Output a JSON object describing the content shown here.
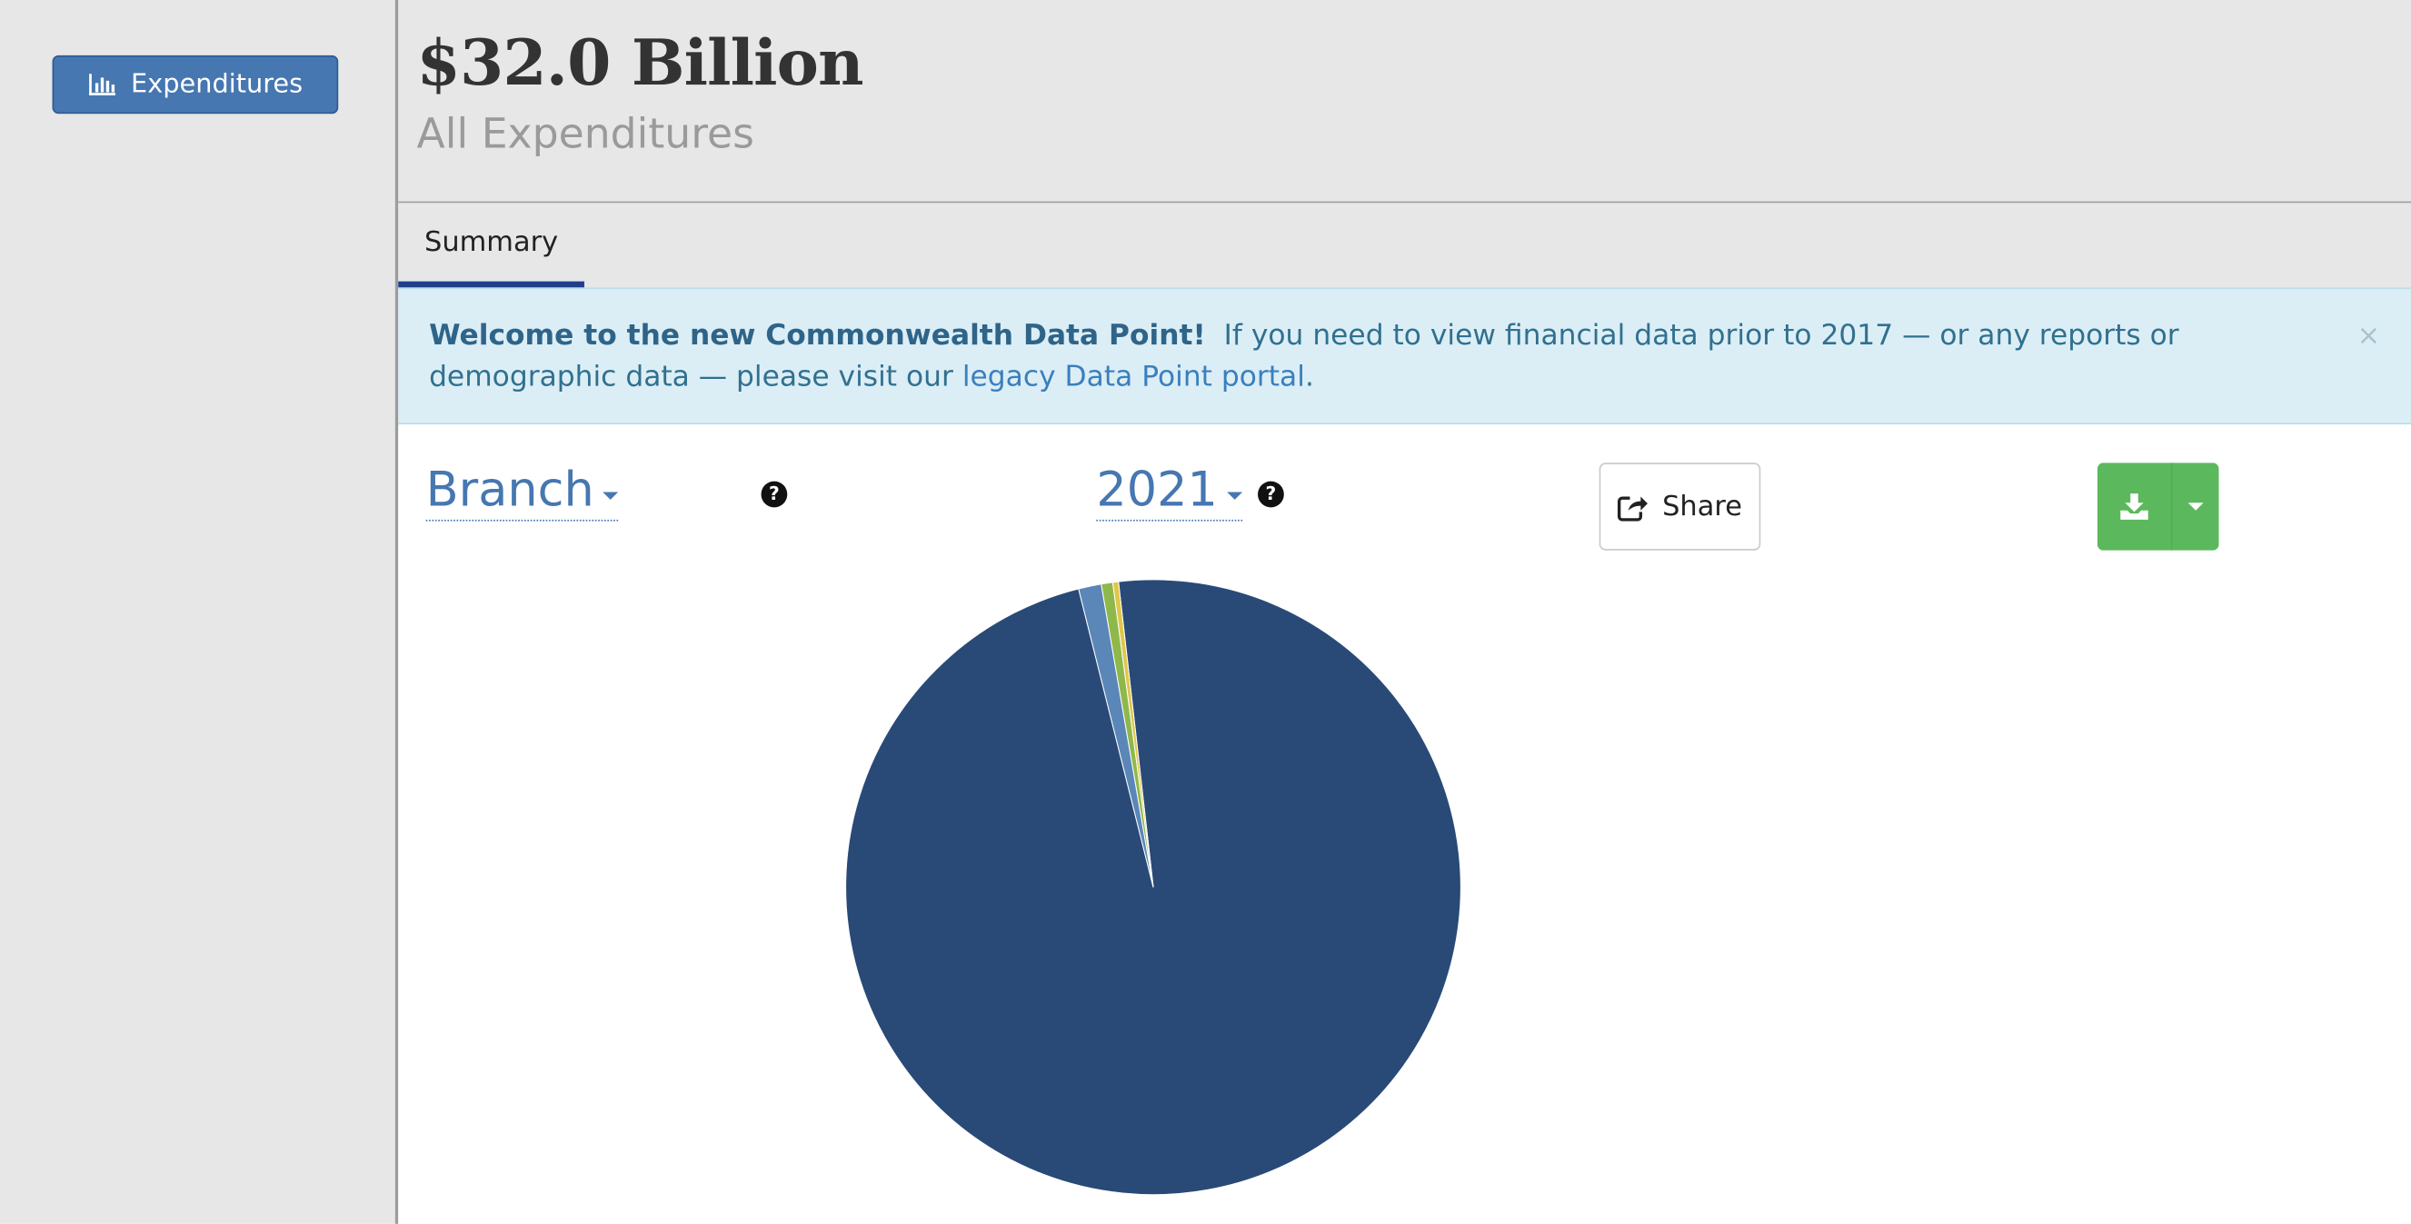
{
  "sidebar": {
    "button_label": "Expenditures",
    "button_icon": "bar-chart-icon"
  },
  "header": {
    "total": "$32.0 Billion",
    "subtitle": "All Expenditures"
  },
  "tabs": [
    {
      "label": "Summary",
      "active": true
    }
  ],
  "alert": {
    "bold": "Welcome to the new Commonwealth Data Point!",
    "text": "If you need to view financial data prior to 2017 — or any reports or demographic data — please visit our",
    "link": "legacy Data Point portal",
    "end": ".",
    "close": "×"
  },
  "controls": {
    "group_by": "Branch",
    "year": "2021",
    "help_symbol": "?",
    "share_label": "Share",
    "download_icon": "download-icon"
  },
  "chart_data": {
    "type": "pie",
    "slices": [
      {
        "label": "",
        "percent": 97.9,
        "color": "#294a77"
      },
      {
        "label": "",
        "percent": 1.2,
        "color": "#5b86b8"
      },
      {
        "label": "",
        "percent": 0.6,
        "color": "#8fb84a"
      },
      {
        "label": "",
        "percent": 0.3,
        "color": "#e0c64b"
      }
    ]
  },
  "colors": {
    "primary": "#4677b1",
    "success": "#5cb85c",
    "tab_underline": "#1f3f8a",
    "alert_bg": "#dbeef6",
    "alert_text": "#31708f"
  }
}
